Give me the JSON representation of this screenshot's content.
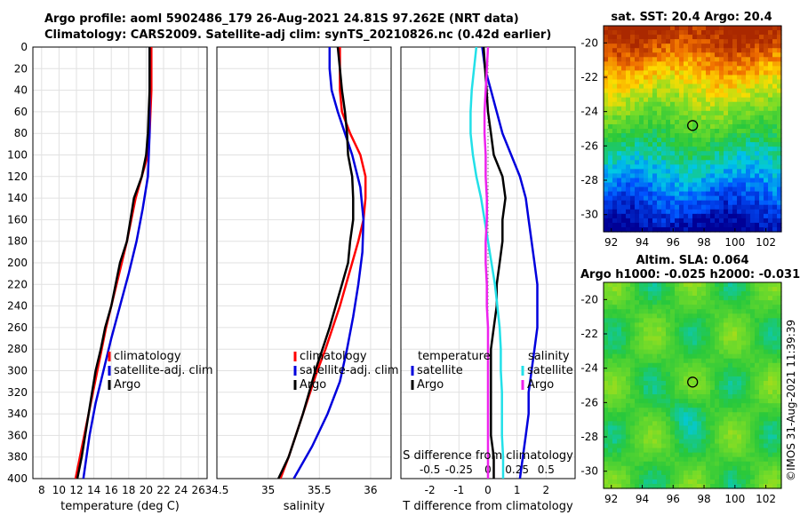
{
  "header": {
    "line1": "Argo profile: aoml 5902486_179 26-Aug-2021 24.81S 97.262E (NRT data)",
    "line2": "Climatology: CARS2009. Satellite-adj clim: synTS_20210826.nc (0.42d earlier)"
  },
  "timestamp": "©IMOS 31-Aug-2021 11:39:39",
  "colors": {
    "climatology": "#ff0000",
    "satellite": "#0000dd",
    "argo": "#000000",
    "s_satellite": "#22e0e8",
    "s_argo": "#ee22ee"
  },
  "chart_data": [
    {
      "type": "line",
      "name": "temperature-panel",
      "xlabel": "temperature (deg C)",
      "ylabel": "",
      "xlim": [
        7,
        27
      ],
      "ylim": [
        400,
        0
      ],
      "xticks": [
        8,
        10,
        12,
        14,
        16,
        18,
        20,
        22,
        24,
        26
      ],
      "yticks": [
        0,
        20,
        40,
        60,
        80,
        100,
        120,
        140,
        160,
        180,
        200,
        220,
        240,
        260,
        280,
        300,
        320,
        340,
        360,
        380,
        400
      ],
      "legend": [
        "climatology",
        "satellite-adj. clim",
        "Argo"
      ],
      "series": [
        {
          "name": "climatology",
          "depth": [
            0,
            20,
            40,
            60,
            80,
            100,
            120,
            140,
            160,
            180,
            200,
            220,
            240,
            260,
            280,
            300,
            320,
            340,
            360,
            380,
            400
          ],
          "values": [
            20.6,
            20.6,
            20.6,
            20.5,
            20.4,
            20.2,
            19.5,
            18.8,
            18.3,
            17.8,
            17.2,
            16.6,
            16.0,
            15.4,
            14.9,
            14.4,
            13.9,
            13.4,
            12.9,
            12.4,
            11.9
          ]
        },
        {
          "name": "satellite-adj. clim",
          "depth": [
            0,
            40,
            80,
            120,
            150,
            180,
            210,
            240,
            270,
            300,
            330,
            360,
            400
          ],
          "values": [
            20.4,
            20.4,
            20.4,
            20.2,
            19.6,
            18.9,
            18.0,
            17.0,
            16.0,
            15.1,
            14.2,
            13.5,
            12.8
          ]
        },
        {
          "name": "Argo",
          "depth": [
            0,
            20,
            40,
            60,
            80,
            100,
            120,
            140,
            160,
            180,
            200,
            220,
            240,
            260,
            280,
            300,
            320,
            340,
            360,
            380,
            400
          ],
          "values": [
            20.4,
            20.4,
            20.4,
            20.3,
            20.2,
            20.0,
            19.5,
            18.6,
            18.2,
            17.8,
            17.0,
            16.5,
            16.0,
            15.3,
            14.8,
            14.2,
            13.8,
            13.4,
            13.0,
            12.6,
            12.1
          ]
        }
      ]
    },
    {
      "type": "line",
      "name": "salinity-panel",
      "xlabel": "salinity",
      "ylabel": "",
      "xlim": [
        34.5,
        36.2
      ],
      "ylim": [
        400,
        0
      ],
      "xticks": [
        34.5,
        35,
        35.5,
        36
      ],
      "legend": [
        "climatology",
        "satellite-adj. clim",
        "Argo"
      ],
      "series": [
        {
          "name": "climatology",
          "depth": [
            0,
            20,
            40,
            60,
            80,
            100,
            120,
            140,
            160,
            180,
            200,
            220,
            240,
            260,
            280,
            300,
            320,
            340,
            360,
            380,
            400
          ],
          "values": [
            35.7,
            35.7,
            35.7,
            35.72,
            35.8,
            35.9,
            35.95,
            35.95,
            35.93,
            35.88,
            35.82,
            35.76,
            35.7,
            35.63,
            35.56,
            35.48,
            35.41,
            35.34,
            35.27,
            35.2,
            35.12
          ]
        },
        {
          "name": "satellite-adj. clim",
          "depth": [
            0,
            20,
            40,
            60,
            80,
            100,
            130,
            160,
            190,
            220,
            250,
            280,
            310,
            340,
            370,
            400
          ],
          "values": [
            35.6,
            35.6,
            35.62,
            35.68,
            35.75,
            35.82,
            35.9,
            35.93,
            35.92,
            35.88,
            35.83,
            35.77,
            35.7,
            35.58,
            35.43,
            35.25
          ]
        },
        {
          "name": "Argo",
          "depth": [
            0,
            20,
            40,
            60,
            80,
            100,
            120,
            140,
            160,
            180,
            200,
            220,
            240,
            260,
            280,
            300,
            320,
            340,
            360,
            380,
            400
          ],
          "values": [
            35.68,
            35.7,
            35.72,
            35.75,
            35.77,
            35.78,
            35.82,
            35.83,
            35.83,
            35.8,
            35.78,
            35.72,
            35.66,
            35.6,
            35.53,
            35.46,
            35.4,
            35.34,
            35.27,
            35.2,
            35.1
          ]
        }
      ]
    },
    {
      "type": "line",
      "name": "difference-panel",
      "xlabel": "T difference from climatology",
      "x2label": "S difference from climatology",
      "xlim": [
        -3,
        3
      ],
      "ylim": [
        400,
        0
      ],
      "xticks": [
        -2,
        -1,
        0,
        1,
        2
      ],
      "x2ticks": [
        -0.5,
        -0.25,
        0,
        0.25,
        0.5
      ],
      "legend_left_title": "temperature",
      "legend_left": [
        "satellite",
        "Argo"
      ],
      "legend_right_title": "salinity",
      "legend_right": [
        "satellite",
        "Argo"
      ],
      "series": [
        {
          "name": "T satellite",
          "depth": [
            0,
            20,
            40,
            60,
            80,
            100,
            120,
            140,
            160,
            180,
            200,
            220,
            240,
            260,
            280,
            300,
            320,
            340,
            360,
            380,
            400
          ],
          "values": [
            -0.2,
            -0.1,
            0.1,
            0.3,
            0.5,
            0.8,
            1.1,
            1.3,
            1.4,
            1.5,
            1.6,
            1.7,
            1.7,
            1.7,
            1.6,
            1.5,
            1.4,
            1.4,
            1.3,
            1.2,
            1.1
          ]
        },
        {
          "name": "T Argo",
          "depth": [
            0,
            20,
            40,
            60,
            80,
            100,
            120,
            140,
            160,
            180,
            200,
            220,
            240,
            260,
            280,
            300,
            320,
            340,
            360,
            380,
            400
          ],
          "values": [
            -0.15,
            -0.1,
            -0.05,
            0,
            0.1,
            0.2,
            0.5,
            0.6,
            0.5,
            0.5,
            0.4,
            0.3,
            0.3,
            0.2,
            0.1,
            0.1,
            0.1,
            0.1,
            0.1,
            0.2,
            0.2
          ]
        },
        {
          "name": "S satellite",
          "depth": [
            0,
            20,
            40,
            60,
            80,
            100,
            120,
            140,
            160,
            180,
            200,
            220,
            240,
            260,
            280,
            300,
            320,
            340,
            360,
            380,
            400
          ],
          "values": [
            -0.1,
            -0.12,
            -0.14,
            -0.15,
            -0.15,
            -0.13,
            -0.1,
            -0.06,
            -0.03,
            0.0,
            0.03,
            0.06,
            0.08,
            0.1,
            0.11,
            0.11,
            0.12,
            0.12,
            0.12,
            0.13,
            0.13
          ]
        },
        {
          "name": "S Argo",
          "depth": [
            0,
            20,
            40,
            60,
            80,
            100,
            120,
            140,
            160,
            180,
            200,
            220,
            240,
            260,
            280,
            300,
            320,
            340,
            360,
            380,
            400
          ],
          "values": [
            0.0,
            -0.01,
            -0.02,
            -0.03,
            -0.03,
            -0.02,
            -0.02,
            -0.01,
            -0.01,
            -0.02,
            -0.02,
            -0.01,
            -0.01,
            0.0,
            0.0,
            0.0,
            0.0,
            0.0,
            0.0,
            0.0,
            0.0
          ]
        }
      ]
    },
    {
      "type": "heatmap",
      "name": "sst-map",
      "title": "sat. SST: 20.4 Argo: 20.4",
      "xlim": [
        91.5,
        103
      ],
      "ylim": [
        -31,
        -19
      ],
      "xticks": [
        92,
        94,
        96,
        98,
        100,
        102
      ],
      "yticks": [
        -20,
        -22,
        -24,
        -26,
        -28,
        -30
      ],
      "marker": {
        "lon": 97.26,
        "lat": -24.81
      }
    },
    {
      "type": "heatmap",
      "name": "sla-map",
      "title": "Altim. SLA: 0.064",
      "subtitle": "Argo h1000: -0.025 h2000: -0.031",
      "xlim": [
        91.5,
        103
      ],
      "ylim": [
        -31,
        -19
      ],
      "xticks": [
        92,
        94,
        96,
        98,
        100,
        102
      ],
      "yticks": [
        -20,
        -22,
        -24,
        -26,
        -28,
        -30
      ],
      "marker": {
        "lon": 97.26,
        "lat": -24.81
      }
    }
  ]
}
